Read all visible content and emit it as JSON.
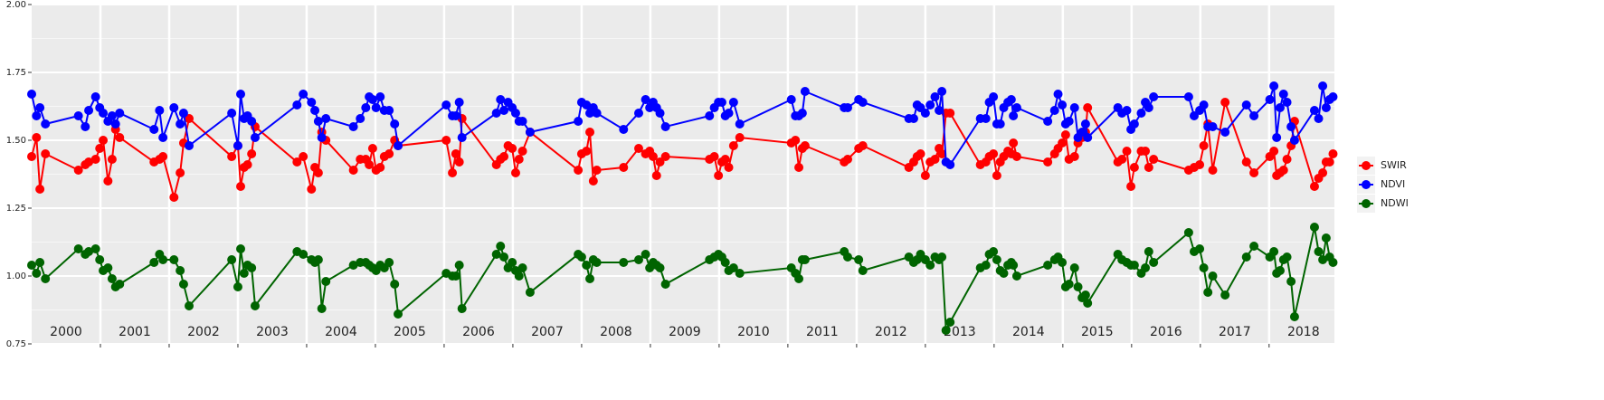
{
  "chart_data": {
    "type": "line",
    "x": [
      2000.0,
      2000.07,
      2000.12,
      2000.2,
      2000.68,
      2000.78,
      2000.83,
      2000.93,
      2000.99,
      2001.04,
      2001.11,
      2001.17,
      2001.22,
      2001.28,
      2001.78,
      2001.86,
      2001.91,
      2002.07,
      2002.16,
      2002.21,
      2002.29,
      2002.91,
      2003.0,
      2003.04,
      2003.09,
      2003.14,
      2003.2,
      2003.25,
      2003.86,
      2003.95,
      2004.07,
      2004.12,
      2004.17,
      2004.22,
      2004.28,
      2004.68,
      2004.78,
      2004.86,
      2004.91,
      2004.96,
      2005.01,
      2005.07,
      2005.13,
      2005.2,
      2005.28,
      2005.33,
      2006.03,
      2006.12,
      2006.17,
      2006.22,
      2006.26,
      2006.76,
      2006.82,
      2006.87,
      2006.93,
      2006.99,
      2007.04,
      2007.09,
      2007.14,
      2007.25,
      2007.95,
      2008.0,
      2008.07,
      2008.12,
      2008.17,
      2008.22,
      2008.61,
      2008.83,
      2008.93,
      2008.99,
      2009.04,
      2009.09,
      2009.14,
      2009.22,
      2009.86,
      2009.93,
      2009.99,
      2010.04,
      2010.09,
      2010.14,
      2010.21,
      2010.3,
      2011.05,
      2011.11,
      2011.16,
      2011.21,
      2011.25,
      2011.82,
      2011.87,
      2012.03,
      2012.09,
      2012.76,
      2012.83,
      2012.88,
      2012.93,
      2013.0,
      2013.07,
      2013.14,
      2013.2,
      2013.24,
      2013.3,
      2013.36,
      2013.8,
      2013.88,
      2013.93,
      2013.99,
      2014.04,
      2014.09,
      2014.14,
      2014.2,
      2014.25,
      2014.28,
      2014.33,
      2014.78,
      2014.88,
      2014.93,
      2014.99,
      2015.04,
      2015.09,
      2015.17,
      2015.22,
      2015.28,
      2015.33,
      2015.36,
      2015.8,
      2015.86,
      2015.93,
      2015.99,
      2016.04,
      2016.14,
      2016.2,
      2016.25,
      2016.32,
      2016.83,
      2016.91,
      2016.99,
      2017.05,
      2017.11,
      2017.18,
      2017.36,
      2017.67,
      2017.78,
      2018.01,
      2018.07,
      2018.11,
      2018.16,
      2018.21,
      2018.26,
      2018.32,
      2018.37,
      2018.66,
      2018.72,
      2018.78,
      2018.83,
      2018.88,
      2018.93
    ],
    "series": [
      {
        "name": "SWIR",
        "color": "#ff0000",
        "values": [
          1.44,
          1.51,
          1.32,
          1.45,
          1.39,
          1.41,
          1.42,
          1.43,
          1.47,
          1.5,
          1.35,
          1.43,
          1.54,
          1.51,
          1.42,
          1.43,
          1.44,
          1.29,
          1.38,
          1.49,
          1.58,
          1.44,
          1.48,
          1.33,
          1.4,
          1.41,
          1.45,
          1.55,
          1.42,
          1.44,
          1.32,
          1.4,
          1.38,
          1.53,
          1.5,
          1.39,
          1.43,
          1.43,
          1.41,
          1.47,
          1.39,
          1.4,
          1.44,
          1.45,
          1.5,
          1.48,
          1.5,
          1.38,
          1.45,
          1.42,
          1.58,
          1.41,
          1.43,
          1.44,
          1.48,
          1.47,
          1.38,
          1.43,
          1.46,
          1.53,
          1.39,
          1.45,
          1.46,
          1.53,
          1.35,
          1.39,
          1.4,
          1.47,
          1.45,
          1.46,
          1.44,
          1.37,
          1.42,
          1.44,
          1.43,
          1.44,
          1.37,
          1.42,
          1.43,
          1.4,
          1.48,
          1.51,
          1.49,
          1.5,
          1.4,
          1.47,
          1.48,
          1.42,
          1.43,
          1.47,
          1.48,
          1.4,
          1.42,
          1.44,
          1.45,
          1.37,
          1.42,
          1.43,
          1.47,
          1.45,
          1.6,
          1.6,
          1.41,
          1.42,
          1.44,
          1.45,
          1.37,
          1.42,
          1.44,
          1.46,
          1.45,
          1.49,
          1.44,
          1.42,
          1.45,
          1.47,
          1.49,
          1.52,
          1.43,
          1.44,
          1.49,
          1.51,
          1.53,
          1.62,
          1.42,
          1.43,
          1.46,
          1.33,
          1.4,
          1.46,
          1.46,
          1.4,
          1.43,
          1.39,
          1.4,
          1.41,
          1.48,
          1.56,
          1.39,
          1.64,
          1.42,
          1.38,
          1.44,
          1.46,
          1.37,
          1.38,
          1.39,
          1.43,
          1.48,
          1.57,
          1.33,
          1.36,
          1.38,
          1.42,
          1.42,
          1.45
        ]
      },
      {
        "name": "NDVI",
        "color": "#0000ff",
        "values": [
          1.67,
          1.59,
          1.62,
          1.56,
          1.59,
          1.55,
          1.61,
          1.66,
          1.62,
          1.6,
          1.57,
          1.59,
          1.56,
          1.6,
          1.54,
          1.61,
          1.51,
          1.62,
          1.56,
          1.6,
          1.48,
          1.6,
          1.48,
          1.67,
          1.58,
          1.59,
          1.57,
          1.51,
          1.63,
          1.67,
          1.64,
          1.61,
          1.57,
          1.51,
          1.58,
          1.55,
          1.58,
          1.62,
          1.66,
          1.65,
          1.62,
          1.66,
          1.61,
          1.61,
          1.56,
          1.48,
          1.63,
          1.59,
          1.59,
          1.64,
          1.51,
          1.6,
          1.65,
          1.61,
          1.64,
          1.62,
          1.6,
          1.57,
          1.57,
          1.53,
          1.57,
          1.64,
          1.63,
          1.6,
          1.62,
          1.6,
          1.54,
          1.6,
          1.65,
          1.62,
          1.64,
          1.62,
          1.6,
          1.55,
          1.59,
          1.62,
          1.64,
          1.64,
          1.59,
          1.6,
          1.64,
          1.56,
          1.65,
          1.59,
          1.59,
          1.6,
          1.68,
          1.62,
          1.62,
          1.65,
          1.64,
          1.58,
          1.58,
          1.63,
          1.62,
          1.6,
          1.63,
          1.66,
          1.61,
          1.68,
          1.42,
          1.41,
          1.58,
          1.58,
          1.64,
          1.66,
          1.56,
          1.56,
          1.62,
          1.64,
          1.65,
          1.59,
          1.62,
          1.57,
          1.61,
          1.67,
          1.63,
          1.56,
          1.57,
          1.62,
          1.51,
          1.53,
          1.56,
          1.51,
          1.62,
          1.6,
          1.61,
          1.54,
          1.56,
          1.6,
          1.64,
          1.62,
          1.66,
          1.66,
          1.59,
          1.61,
          1.63,
          1.55,
          1.55,
          1.53,
          1.63,
          1.59,
          1.65,
          1.7,
          1.51,
          1.62,
          1.67,
          1.64,
          1.55,
          1.5,
          1.61,
          1.58,
          1.7,
          1.62,
          1.65,
          1.66
        ]
      },
      {
        "name": "NDWI",
        "color": "#006400",
        "values": [
          1.04,
          1.01,
          1.05,
          0.99,
          1.1,
          1.08,
          1.09,
          1.1,
          1.06,
          1.02,
          1.03,
          0.99,
          0.96,
          0.97,
          1.05,
          1.08,
          1.06,
          1.06,
          1.02,
          0.97,
          0.89,
          1.06,
          0.96,
          1.1,
          1.01,
          1.04,
          1.03,
          0.89,
          1.09,
          1.08,
          1.06,
          1.05,
          1.06,
          0.88,
          0.98,
          1.04,
          1.05,
          1.05,
          1.04,
          1.03,
          1.02,
          1.04,
          1.03,
          1.05,
          0.97,
          0.86,
          1.01,
          1.0,
          1.0,
          1.04,
          0.88,
          1.08,
          1.11,
          1.07,
          1.03,
          1.05,
          1.02,
          1.0,
          1.03,
          0.94,
          1.08,
          1.07,
          1.04,
          0.99,
          1.06,
          1.05,
          1.05,
          1.06,
          1.08,
          1.03,
          1.05,
          1.04,
          1.03,
          0.97,
          1.06,
          1.07,
          1.08,
          1.07,
          1.05,
          1.02,
          1.03,
          1.01,
          1.03,
          1.01,
          0.99,
          1.06,
          1.06,
          1.09,
          1.07,
          1.06,
          1.02,
          1.07,
          1.05,
          1.06,
          1.08,
          1.06,
          1.04,
          1.07,
          1.06,
          1.07,
          0.8,
          0.83,
          1.03,
          1.04,
          1.08,
          1.09,
          1.06,
          1.02,
          1.01,
          1.04,
          1.05,
          1.04,
          1.0,
          1.04,
          1.06,
          1.07,
          1.05,
          0.96,
          0.97,
          1.03,
          0.96,
          0.92,
          0.93,
          0.9,
          1.08,
          1.06,
          1.05,
          1.04,
          1.04,
          1.01,
          1.03,
          1.09,
          1.05,
          1.16,
          1.09,
          1.1,
          1.03,
          0.94,
          1.0,
          0.93,
          1.07,
          1.11,
          1.07,
          1.09,
          1.01,
          1.02,
          1.06,
          1.07,
          0.98,
          0.85,
          1.18,
          1.09,
          1.06,
          1.14,
          1.07,
          1.05
        ]
      }
    ],
    "xlim": [
      2000,
      2018.95
    ],
    "xticks": [
      2001,
      2002,
      2003,
      2004,
      2005,
      2006,
      2007,
      2008,
      2009,
      2010,
      2011,
      2012,
      2013,
      2014,
      2015,
      2016,
      2017,
      2018
    ],
    "year_labels": [
      "2000",
      "2001",
      "2002",
      "2003",
      "2004",
      "2005",
      "2006",
      "2007",
      "2008",
      "2009",
      "2010",
      "2011",
      "2012",
      "2013",
      "2014",
      "2015",
      "2016",
      "2017",
      "2018"
    ],
    "ylim": [
      0.75,
      2.0
    ],
    "yticks": [
      {
        "value": 0.75,
        "label": "0.75"
      },
      {
        "value": 1.0,
        "label": "1.00"
      },
      {
        "value": 1.25,
        "label": "1.25"
      },
      {
        "value": 1.5,
        "label": "1.50"
      },
      {
        "value": 1.75,
        "label": "1.75"
      },
      {
        "value": 2.0,
        "label": "2.00"
      }
    ],
    "grid": true,
    "legend": "right"
  }
}
